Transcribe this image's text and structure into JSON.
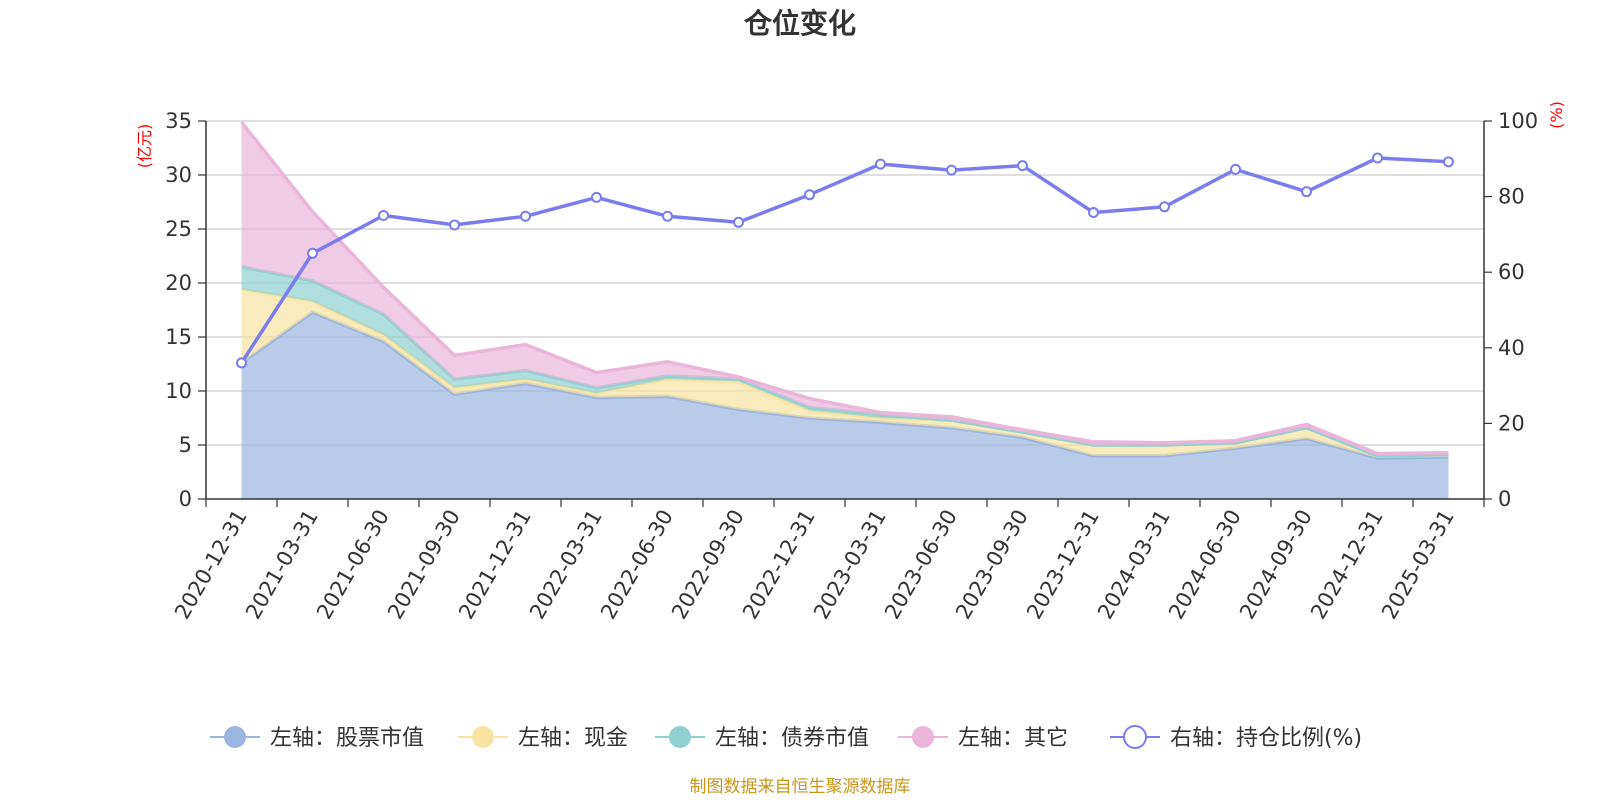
{
  "chart_data": {
    "type": "area",
    "title": "仓位变化",
    "left_unit": "(亿元)",
    "right_unit": "(%)",
    "categories": [
      "2020-12-31",
      "2021-03-31",
      "2021-06-30",
      "2021-09-30",
      "2021-12-31",
      "2022-03-31",
      "2022-06-30",
      "2022-09-30",
      "2022-12-31",
      "2023-03-31",
      "2023-06-30",
      "2023-09-30",
      "2023-12-31",
      "2024-03-31",
      "2024-06-30",
      "2024-09-30",
      "2024-12-31",
      "2025-03-31"
    ],
    "ylim_left": [
      0,
      35
    ],
    "yticks_left": [
      "0",
      "5",
      "10",
      "15",
      "20",
      "25",
      "30",
      "35"
    ],
    "ylim_right": [
      0,
      100
    ],
    "yticks_right": [
      "0",
      "20",
      "40",
      "60",
      "80",
      "100"
    ],
    "stacked": true,
    "series": [
      {
        "name": "左轴：股票市值",
        "axis": "left",
        "color": "#9ab5df",
        "values": [
          12.6,
          17.3,
          14.6,
          9.7,
          10.7,
          9.4,
          9.5,
          8.3,
          7.5,
          7.1,
          6.6,
          5.7,
          4.0,
          4.0,
          4.7,
          5.6,
          3.8,
          3.9
        ]
      },
      {
        "name": "左轴：现金",
        "axis": "left",
        "color": "#f8e3a1",
        "values": [
          6.8,
          1.0,
          0.6,
          0.6,
          0.4,
          0.4,
          1.6,
          2.6,
          0.7,
          0.4,
          0.7,
          0.5,
          1.0,
          1.0,
          0.5,
          1.0,
          0.2,
          0.2
        ]
      },
      {
        "name": "左轴：债券市值",
        "axis": "left",
        "color": "#8fd0d0",
        "values": [
          2.1,
          1.9,
          1.9,
          0.8,
          0.8,
          0.5,
          0.3,
          0.2,
          0.3,
          0.3,
          0,
          0,
          0,
          0,
          0,
          0,
          0,
          0
        ]
      },
      {
        "name": "左轴：其它",
        "axis": "left",
        "color": "#eab5d9",
        "values": [
          13.4,
          6.4,
          2.5,
          2.2,
          2.4,
          1.4,
          1.3,
          0.2,
          0.8,
          0.2,
          0.3,
          0.2,
          0.3,
          0.2,
          0.2,
          0.3,
          0.2,
          0.2
        ]
      },
      {
        "name": "右轴：持仓比例(%)",
        "axis": "right",
        "type": "line",
        "color": "#7b7ced",
        "values": [
          36,
          65,
          75,
          72.5,
          74.8,
          79.8,
          74.8,
          73.2,
          80.5,
          88.6,
          87,
          88.2,
          75.8,
          77.3,
          87.2,
          81.3,
          90.2,
          89.2
        ]
      }
    ],
    "legend_position": "bottom",
    "grid": true
  },
  "source_text": "制图数据来自恒生聚源数据库"
}
